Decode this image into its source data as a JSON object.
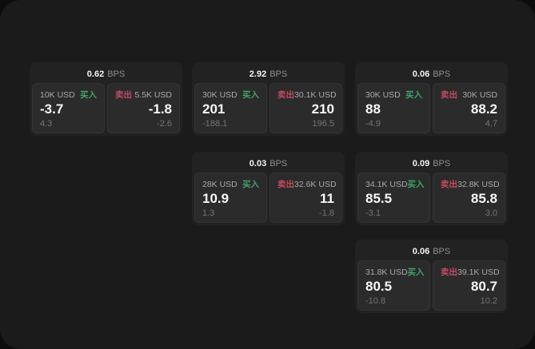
{
  "labels": {
    "buy": "买入",
    "sell": "卖出",
    "bps": "BPS"
  },
  "colors": {
    "buy_green": "#41a368",
    "sell_red": "#c24b62",
    "panel_bg": "#1b1b1b",
    "card_bg": "#222222",
    "pane_bg": "#2b2b2b"
  },
  "cards": [
    {
      "bps": "0.62",
      "buy": {
        "amount": "10K USD",
        "price": "-3.7",
        "delta": "4.3"
      },
      "sell": {
        "amount": "5.5K USD",
        "price": "-1.8",
        "delta": "-2.6"
      }
    },
    {
      "bps": "2.92",
      "buy": {
        "amount": "30K USD",
        "price": "201",
        "delta": "-188.1"
      },
      "sell": {
        "amount": "30.1K USD",
        "price": "210",
        "delta": "196.5"
      }
    },
    {
      "bps": "0.06",
      "buy": {
        "amount": "30K USD",
        "price": "88",
        "delta": "-4.9"
      },
      "sell": {
        "amount": "30K USD",
        "price": "88.2",
        "delta": "4.7"
      }
    },
    {
      "bps": "0.03",
      "buy": {
        "amount": "28K USD",
        "price": "10.9",
        "delta": "1.3"
      },
      "sell": {
        "amount": "32.6K USD",
        "price": "11",
        "delta": "-1.8"
      }
    },
    {
      "bps": "0.09",
      "buy": {
        "amount": "34.1K USD",
        "price": "85.5",
        "delta": "-3.1"
      },
      "sell": {
        "amount": "32.8K USD",
        "price": "85.8",
        "delta": "3.0"
      }
    },
    {
      "bps": "0.06",
      "buy": {
        "amount": "31.8K USD",
        "price": "80.5",
        "delta": "-10.8"
      },
      "sell": {
        "amount": "39.1K USD",
        "price": "80.7",
        "delta": "10.2"
      }
    }
  ]
}
